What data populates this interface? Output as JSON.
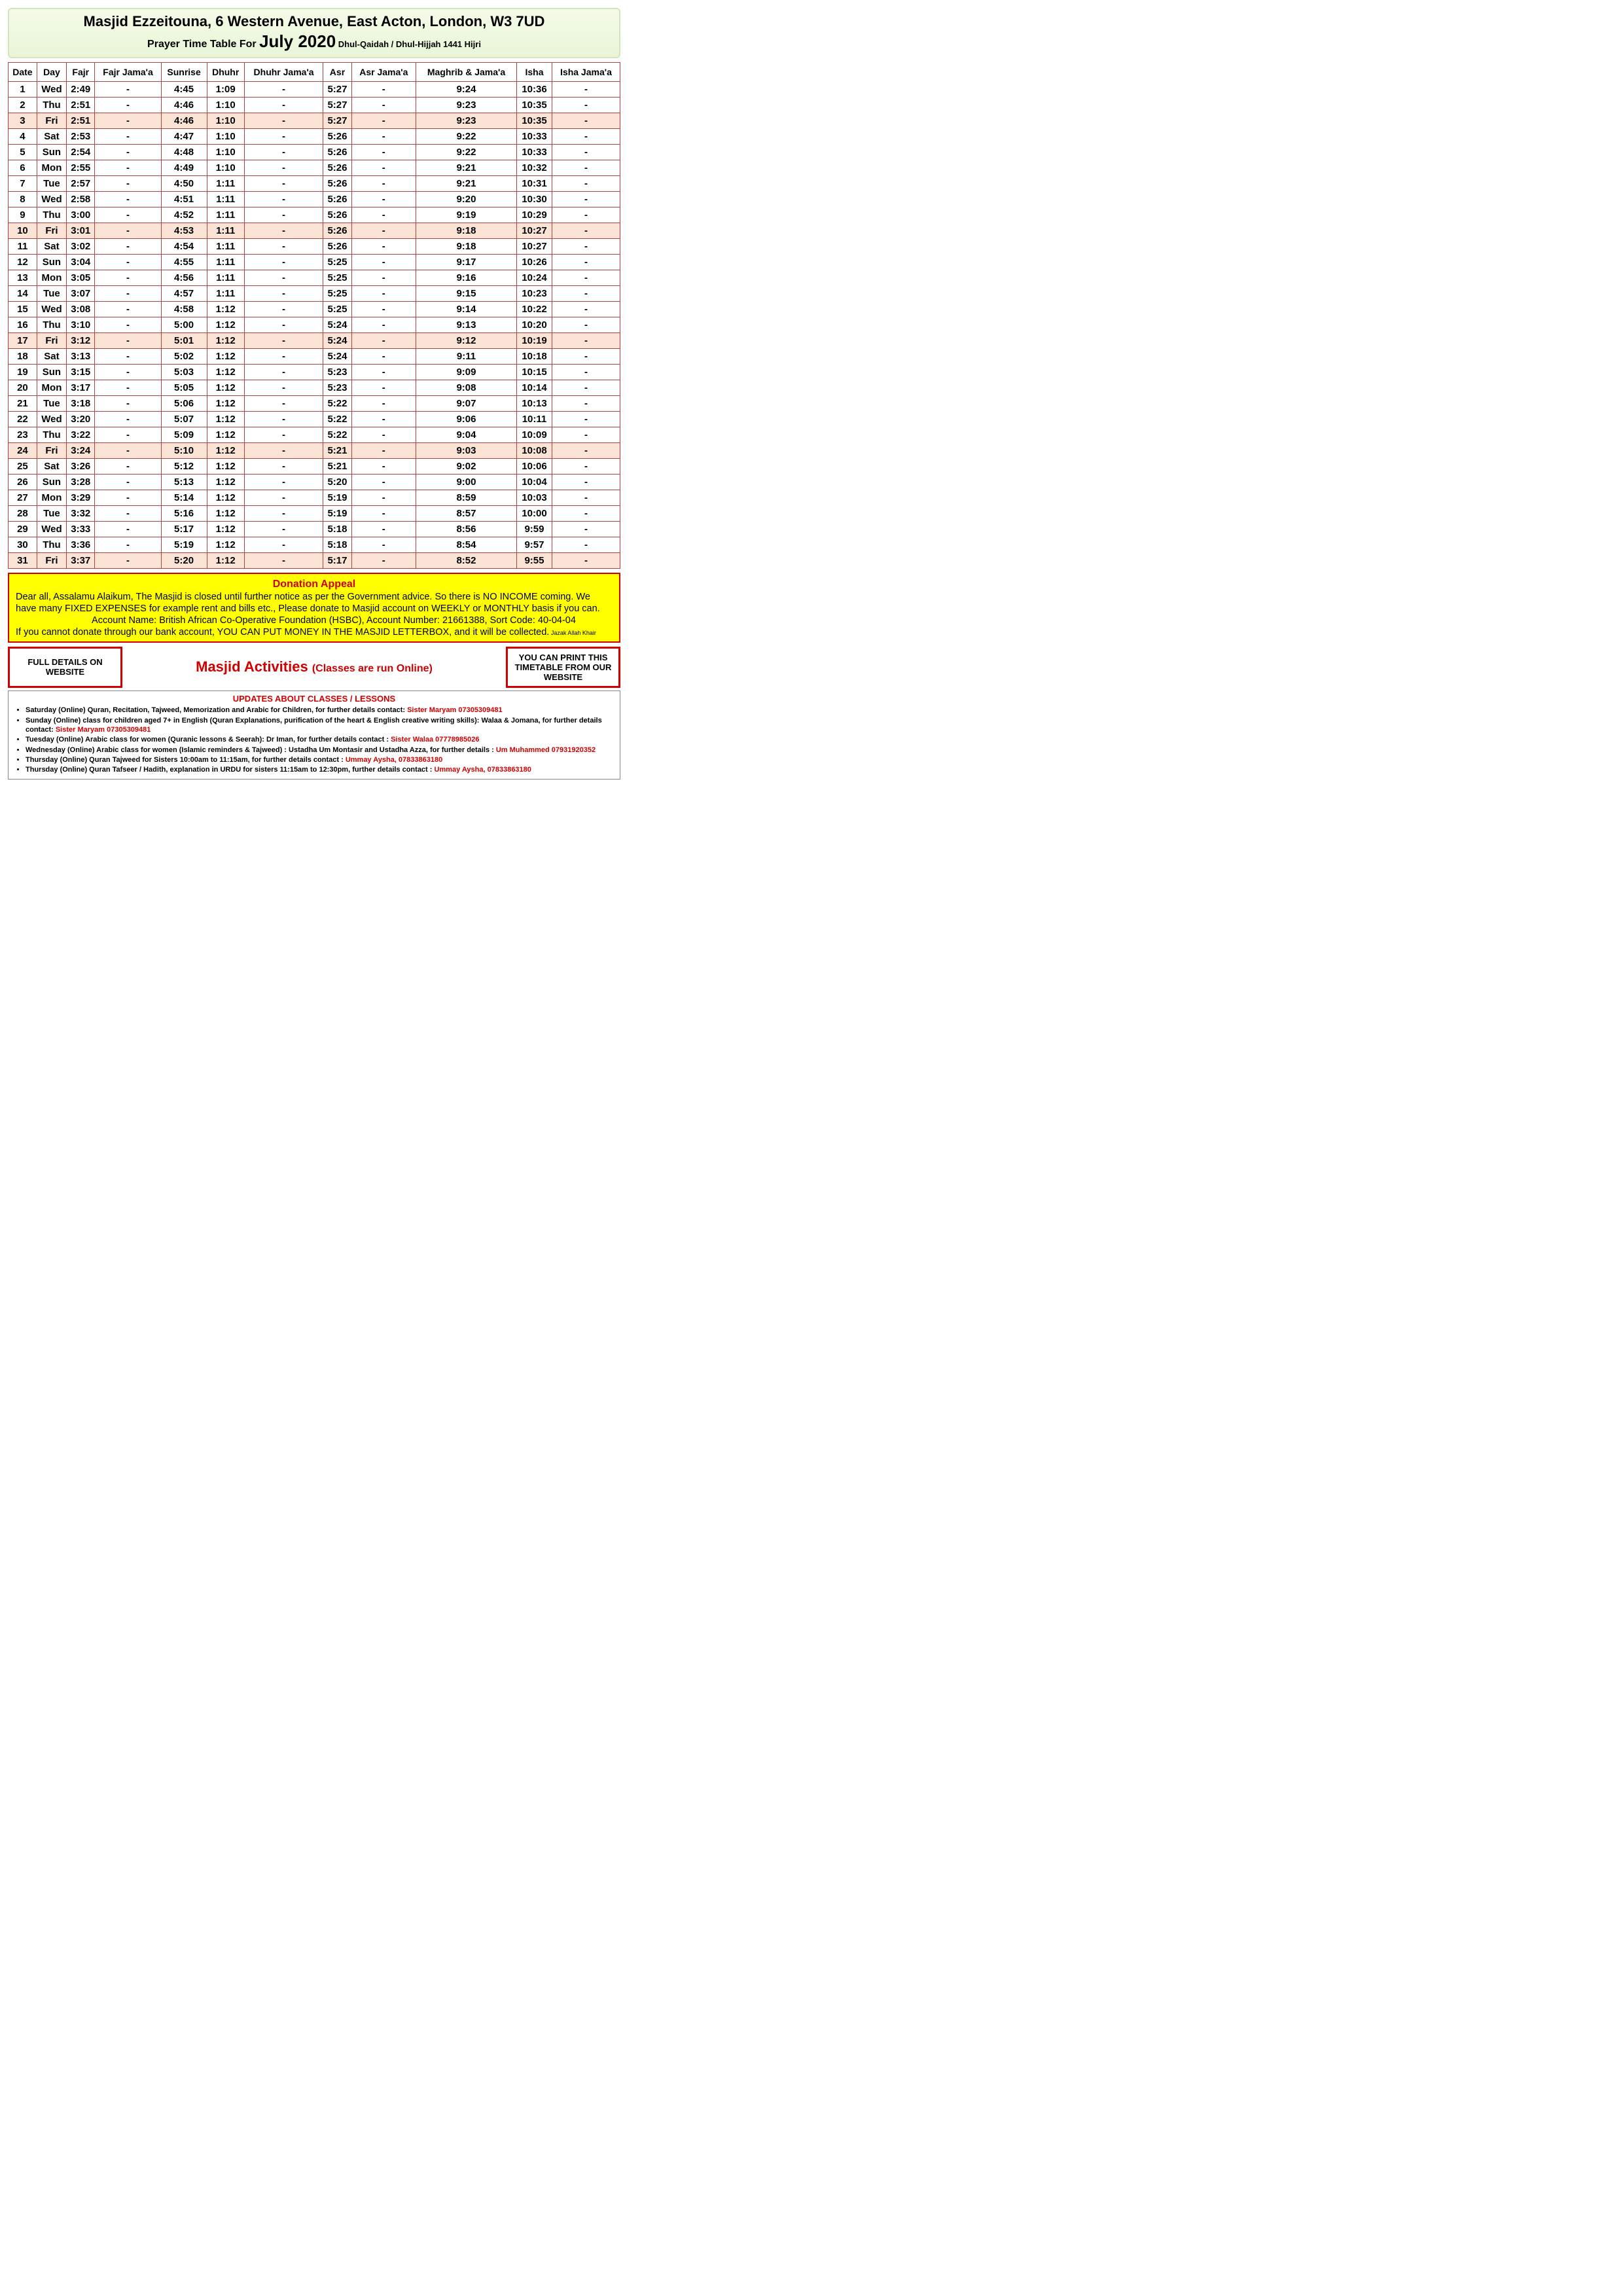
{
  "header": {
    "title": "Masjid Ezzeitouna, 6 Western Avenue, East Acton, London, W3 7UD",
    "sub_prefix": "Prayer Time Table For ",
    "month": "July 2020",
    "hijri": " Dhul-Qaidah  / Dhul-Hijjah 1441 Hijri"
  },
  "columns": [
    "Date",
    "Day",
    "Fajr",
    "Fajr Jama'a",
    "Sunrise",
    "Dhuhr",
    "Dhuhr Jama'a",
    "Asr",
    "Asr Jama'a",
    "Maghrib & Jama'a",
    "Isha",
    "Isha Jama'a"
  ],
  "rows": [
    {
      "d": "1",
      "day": "Wed",
      "fajr": "2:49",
      "fj": "-",
      "sun": "4:45",
      "dh": "1:09",
      "dhj": "-",
      "asr": "5:27",
      "asj": "-",
      "mag": "9:24",
      "isha": "10:36",
      "isj": "-",
      "fri": false
    },
    {
      "d": "2",
      "day": "Thu",
      "fajr": "2:51",
      "fj": "-",
      "sun": "4:46",
      "dh": "1:10",
      "dhj": "-",
      "asr": "5:27",
      "asj": "-",
      "mag": "9:23",
      "isha": "10:35",
      "isj": "-",
      "fri": false
    },
    {
      "d": "3",
      "day": "Fri",
      "fajr": "2:51",
      "fj": "-",
      "sun": "4:46",
      "dh": "1:10",
      "dhj": "-",
      "asr": "5:27",
      "asj": "-",
      "mag": "9:23",
      "isha": "10:35",
      "isj": "-",
      "fri": true
    },
    {
      "d": "4",
      "day": "Sat",
      "fajr": "2:53",
      "fj": "-",
      "sun": "4:47",
      "dh": "1:10",
      "dhj": "-",
      "asr": "5:26",
      "asj": "-",
      "mag": "9:22",
      "isha": "10:33",
      "isj": "-",
      "fri": false
    },
    {
      "d": "5",
      "day": "Sun",
      "fajr": "2:54",
      "fj": "-",
      "sun": "4:48",
      "dh": "1:10",
      "dhj": "-",
      "asr": "5:26",
      "asj": "-",
      "mag": "9:22",
      "isha": "10:33",
      "isj": "-",
      "fri": false
    },
    {
      "d": "6",
      "day": "Mon",
      "fajr": "2:55",
      "fj": "-",
      "sun": "4:49",
      "dh": "1:10",
      "dhj": "-",
      "asr": "5:26",
      "asj": "-",
      "mag": "9:21",
      "isha": "10:32",
      "isj": "-",
      "fri": false
    },
    {
      "d": "7",
      "day": "Tue",
      "fajr": "2:57",
      "fj": "-",
      "sun": "4:50",
      "dh": "1:11",
      "dhj": "-",
      "asr": "5:26",
      "asj": "-",
      "mag": "9:21",
      "isha": "10:31",
      "isj": "-",
      "fri": false
    },
    {
      "d": "8",
      "day": "Wed",
      "fajr": "2:58",
      "fj": "-",
      "sun": "4:51",
      "dh": "1:11",
      "dhj": "-",
      "asr": "5:26",
      "asj": "-",
      "mag": "9:20",
      "isha": "10:30",
      "isj": "-",
      "fri": false
    },
    {
      "d": "9",
      "day": "Thu",
      "fajr": "3:00",
      "fj": "-",
      "sun": "4:52",
      "dh": "1:11",
      "dhj": "-",
      "asr": "5:26",
      "asj": "-",
      "mag": "9:19",
      "isha": "10:29",
      "isj": "-",
      "fri": false
    },
    {
      "d": "10",
      "day": "Fri",
      "fajr": "3:01",
      "fj": "-",
      "sun": "4:53",
      "dh": "1:11",
      "dhj": "-",
      "asr": "5:26",
      "asj": "-",
      "mag": "9:18",
      "isha": "10:27",
      "isj": "-",
      "fri": true
    },
    {
      "d": "11",
      "day": "Sat",
      "fajr": "3:02",
      "fj": "-",
      "sun": "4:54",
      "dh": "1:11",
      "dhj": "-",
      "asr": "5:26",
      "asj": "-",
      "mag": "9:18",
      "isha": "10:27",
      "isj": "-",
      "fri": false
    },
    {
      "d": "12",
      "day": "Sun",
      "fajr": "3:04",
      "fj": "-",
      "sun": "4:55",
      "dh": "1:11",
      "dhj": "-",
      "asr": "5:25",
      "asj": "-",
      "mag": "9:17",
      "isha": "10:26",
      "isj": "-",
      "fri": false
    },
    {
      "d": "13",
      "day": "Mon",
      "fajr": "3:05",
      "fj": "-",
      "sun": "4:56",
      "dh": "1:11",
      "dhj": "-",
      "asr": "5:25",
      "asj": "-",
      "mag": "9:16",
      "isha": "10:24",
      "isj": "-",
      "fri": false
    },
    {
      "d": "14",
      "day": "Tue",
      "fajr": "3:07",
      "fj": "-",
      "sun": "4:57",
      "dh": "1:11",
      "dhj": "-",
      "asr": "5:25",
      "asj": "-",
      "mag": "9:15",
      "isha": "10:23",
      "isj": "-",
      "fri": false
    },
    {
      "d": "15",
      "day": "Wed",
      "fajr": "3:08",
      "fj": "-",
      "sun": "4:58",
      "dh": "1:12",
      "dhj": "-",
      "asr": "5:25",
      "asj": "-",
      "mag": "9:14",
      "isha": "10:22",
      "isj": "-",
      "fri": false
    },
    {
      "d": "16",
      "day": "Thu",
      "fajr": "3:10",
      "fj": "-",
      "sun": "5:00",
      "dh": "1:12",
      "dhj": "-",
      "asr": "5:24",
      "asj": "-",
      "mag": "9:13",
      "isha": "10:20",
      "isj": "-",
      "fri": false
    },
    {
      "d": "17",
      "day": "Fri",
      "fajr": "3:12",
      "fj": "-",
      "sun": "5:01",
      "dh": "1:12",
      "dhj": "-",
      "asr": "5:24",
      "asj": "-",
      "mag": "9:12",
      "isha": "10:19",
      "isj": "-",
      "fri": true
    },
    {
      "d": "18",
      "day": "Sat",
      "fajr": "3:13",
      "fj": "-",
      "sun": "5:02",
      "dh": "1:12",
      "dhj": "-",
      "asr": "5:24",
      "asj": "-",
      "mag": "9:11",
      "isha": "10:18",
      "isj": "-",
      "fri": false
    },
    {
      "d": "19",
      "day": "Sun",
      "fajr": "3:15",
      "fj": "-",
      "sun": "5:03",
      "dh": "1:12",
      "dhj": "-",
      "asr": "5:23",
      "asj": "-",
      "mag": "9:09",
      "isha": "10:15",
      "isj": "-",
      "fri": false
    },
    {
      "d": "20",
      "day": "Mon",
      "fajr": "3:17",
      "fj": "-",
      "sun": "5:05",
      "dh": "1:12",
      "dhj": "-",
      "asr": "5:23",
      "asj": "-",
      "mag": "9:08",
      "isha": "10:14",
      "isj": "-",
      "fri": false
    },
    {
      "d": "21",
      "day": "Tue",
      "fajr": "3:18",
      "fj": "-",
      "sun": "5:06",
      "dh": "1:12",
      "dhj": "-",
      "asr": "5:22",
      "asj": "-",
      "mag": "9:07",
      "isha": "10:13",
      "isj": "-",
      "fri": false
    },
    {
      "d": "22",
      "day": "Wed",
      "fajr": "3:20",
      "fj": "-",
      "sun": "5:07",
      "dh": "1:12",
      "dhj": "-",
      "asr": "5:22",
      "asj": "-",
      "mag": "9:06",
      "isha": "10:11",
      "isj": "-",
      "fri": false
    },
    {
      "d": "23",
      "day": "Thu",
      "fajr": "3:22",
      "fj": "-",
      "sun": "5:09",
      "dh": "1:12",
      "dhj": "-",
      "asr": "5:22",
      "asj": "-",
      "mag": "9:04",
      "isha": "10:09",
      "isj": "-",
      "fri": false
    },
    {
      "d": "24",
      "day": "Fri",
      "fajr": "3:24",
      "fj": "-",
      "sun": "5:10",
      "dh": "1:12",
      "dhj": "-",
      "asr": "5:21",
      "asj": "-",
      "mag": "9:03",
      "isha": "10:08",
      "isj": "-",
      "fri": true
    },
    {
      "d": "25",
      "day": "Sat",
      "fajr": "3:26",
      "fj": "-",
      "sun": "5:12",
      "dh": "1:12",
      "dhj": "-",
      "asr": "5:21",
      "asj": "-",
      "mag": "9:02",
      "isha": "10:06",
      "isj": "-",
      "fri": false
    },
    {
      "d": "26",
      "day": "Sun",
      "fajr": "3:28",
      "fj": "-",
      "sun": "5:13",
      "dh": "1:12",
      "dhj": "-",
      "asr": "5:20",
      "asj": "-",
      "mag": "9:00",
      "isha": "10:04",
      "isj": "-",
      "fri": false
    },
    {
      "d": "27",
      "day": "Mon",
      "fajr": "3:29",
      "fj": "-",
      "sun": "5:14",
      "dh": "1:12",
      "dhj": "-",
      "asr": "5:19",
      "asj": "-",
      "mag": "8:59",
      "isha": "10:03",
      "isj": "-",
      "fri": false
    },
    {
      "d": "28",
      "day": "Tue",
      "fajr": "3:32",
      "fj": "-",
      "sun": "5:16",
      "dh": "1:12",
      "dhj": "-",
      "asr": "5:19",
      "asj": "-",
      "mag": "8:57",
      "isha": "10:00",
      "isj": "-",
      "fri": false
    },
    {
      "d": "29",
      "day": "Wed",
      "fajr": "3:33",
      "fj": "-",
      "sun": "5:17",
      "dh": "1:12",
      "dhj": "-",
      "asr": "5:18",
      "asj": "-",
      "mag": "8:56",
      "isha": "9:59",
      "isj": "-",
      "fri": false
    },
    {
      "d": "30",
      "day": "Thu",
      "fajr": "3:36",
      "fj": "-",
      "sun": "5:19",
      "dh": "1:12",
      "dhj": "-",
      "asr": "5:18",
      "asj": "-",
      "mag": "8:54",
      "isha": "9:57",
      "isj": "-",
      "fri": false
    },
    {
      "d": "31",
      "day": "Fri",
      "fajr": "3:37",
      "fj": "-",
      "sun": "5:20",
      "dh": "1:12",
      "dhj": "-",
      "asr": "5:17",
      "asj": "-",
      "mag": "8:52",
      "isha": "9:55",
      "isj": "-",
      "fri": true
    }
  ],
  "donation": {
    "title": "Donation Appeal",
    "line1": "Dear all, Assalamu Alaikum, The Masjid is closed until further notice as per the Government advice. So there is NO INCOME coming. We have many FIXED EXPENSES for example rent and bills etc., Please donate to Masjid account on WEEKLY or MONTHLY basis if you can.",
    "line2": "Account Name: British African Co-Operative Foundation (HSBC), Account Number: 21661388, Sort Code: 40-04-04",
    "line3": "If you cannot donate through our bank account, YOU CAN PUT MONEY IN THE MASJID LETTERBOX, and it will be collected.",
    "tiny": " Jazak Allah Khair"
  },
  "boxes": {
    "left": "FULL DETAILS ON WEBSITE",
    "mid_title": "Masjid Activities ",
    "mid_sub": "(Classes are run Online)",
    "right": "YOU CAN PRINT THIS TIMETABLE FROM OUR WEBSITE"
  },
  "updates": {
    "title": "UPDATES ABOUT CLASSES / LESSONS",
    "items": [
      {
        "t": "Saturday (Online) Quran, Recitation, Tajweed, Memorization and Arabic for Children, for further details contact: ",
        "c": "Sister Maryam 07305309481"
      },
      {
        "t": "Sunday (Online) class for children aged 7+ in English (Quran Explanations, purification of the heart & English creative writing skills): Walaa & Jomana, for further details contact: ",
        "c": "Sister Maryam 07305309481"
      },
      {
        "t": "Tuesday (Online) Arabic class for women (Quranic lessons & Seerah): Dr Iman, for further details contact : ",
        "c": "Sister Walaa 07778985026"
      },
      {
        "t": "Wednesday (Online) Arabic class for women (Islamic reminders & Tajweed) : Ustadha Um Montasir and Ustadha Azza, for further details : ",
        "c": "Um Muhammed 07931920352"
      },
      {
        "t": "Thursday (Online) Quran Tajweed for Sisters 10:00am to 11:15am, for further details contact : ",
        "c": "Ummay Aysha, 07833863180"
      },
      {
        "t": "Thursday (Online) Quran Tafseer / Hadith, explanation in URDU for sisters 11:15am to 12:30pm, further details contact : ",
        "c": "Ummay Aysha, 07833863180"
      }
    ]
  }
}
